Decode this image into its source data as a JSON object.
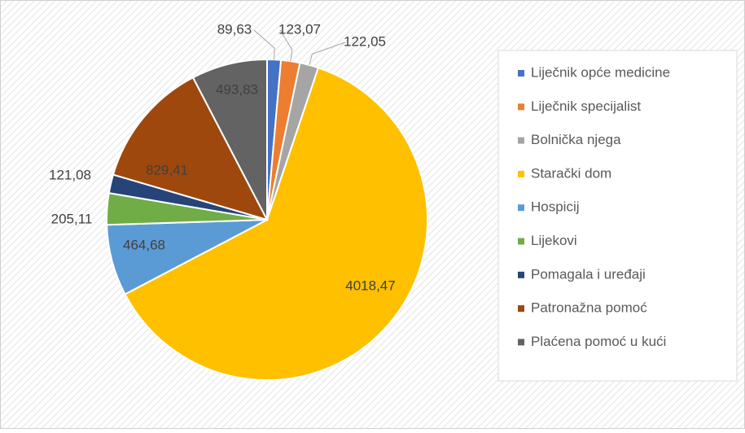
{
  "chart_data": {
    "type": "pie",
    "categories": [
      "Liječnik opće medicine",
      "Liječnik specijalist",
      "Bolnička njega",
      "Starački dom",
      "Hospicij",
      "Lijekovi",
      "Pomagala i uređaji",
      "Patronažna pomoć",
      "Plaćena pomoć u kući"
    ],
    "values": [
      89.63,
      123.07,
      122.05,
      4018.47,
      464.68,
      205.11,
      121.08,
      829.41,
      493.83
    ],
    "value_labels": [
      "89,63",
      "123,07",
      "122,05",
      "4018,47",
      "464,68",
      "205,11",
      "121,08",
      "829,41",
      "493,83"
    ],
    "colors": [
      "#4472c4",
      "#ed7d31",
      "#a5a5a5",
      "#ffc000",
      "#5b9bd5",
      "#70ad47",
      "#264478",
      "#9e480e",
      "#636363"
    ],
    "legend": "right"
  }
}
